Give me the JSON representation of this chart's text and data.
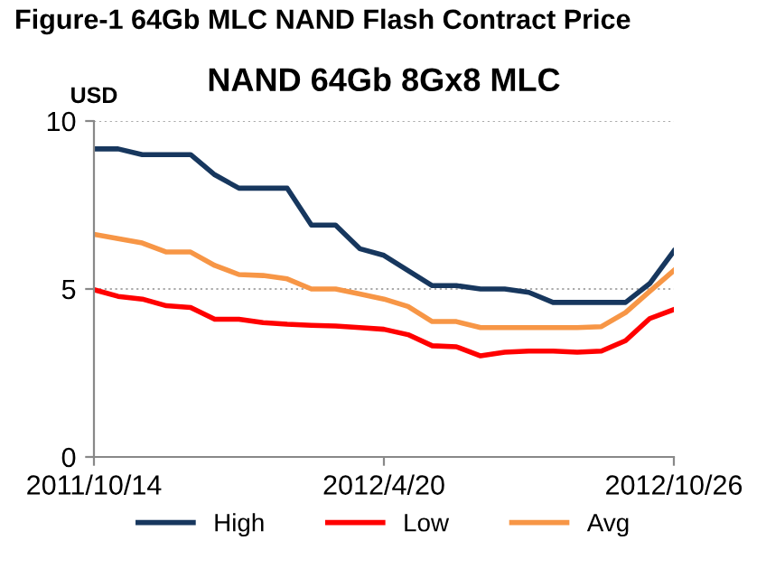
{
  "chart_data": {
    "type": "line",
    "title": "Figure-1 64Gb MLC NAND Flash Contract Price",
    "subtitle": "NAND 64Gb 8Gx8 MLC",
    "ylabel": "USD",
    "categories": [
      "2011/10/14",
      null,
      null,
      null,
      null,
      null,
      null,
      null,
      null,
      null,
      null,
      null,
      "2012/4/20",
      null,
      null,
      null,
      null,
      null,
      null,
      null,
      null,
      null,
      null,
      null,
      "2012/10/26"
    ],
    "series": [
      {
        "name": "High",
        "color": "#17375e",
        "values": [
          9.17,
          9.17,
          9.0,
          9.0,
          9.0,
          8.4,
          8.0,
          8.0,
          8.0,
          6.9,
          6.9,
          6.2,
          6.0,
          5.55,
          5.1,
          5.1,
          5.0,
          5.0,
          4.9,
          4.6,
          4.6,
          4.6,
          4.6,
          5.16,
          6.13
        ]
      },
      {
        "name": "Low",
        "color": "#ff0000",
        "values": [
          4.98,
          4.78,
          4.7,
          4.5,
          4.45,
          4.1,
          4.1,
          4.0,
          3.95,
          3.92,
          3.9,
          3.85,
          3.8,
          3.64,
          3.31,
          3.28,
          3.01,
          3.12,
          3.15,
          3.15,
          3.12,
          3.15,
          3.46,
          4.12,
          4.39
        ]
      },
      {
        "name": "Avg",
        "color": "#f79646",
        "values": [
          6.63,
          6.5,
          6.37,
          6.1,
          6.1,
          5.7,
          5.43,
          5.4,
          5.3,
          5.0,
          5.0,
          4.85,
          4.7,
          4.48,
          4.03,
          4.03,
          3.85,
          3.85,
          3.85,
          3.85,
          3.85,
          3.88,
          4.3,
          4.93,
          5.55
        ]
      }
    ],
    "ylim": [
      0,
      10
    ],
    "yticks": [
      0,
      5,
      10
    ],
    "grid": "y",
    "legend": "bottom",
    "marker": "none",
    "line_style": "solid"
  }
}
